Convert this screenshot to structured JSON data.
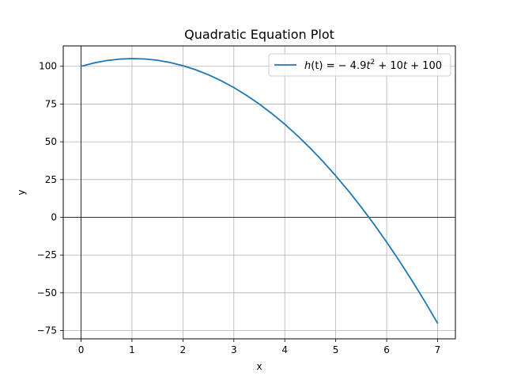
{
  "chart_data": {
    "type": "line",
    "title": "Quadratic Equation Plot",
    "xlabel": "x",
    "ylabel": "y",
    "xlim": [
      -0.35,
      7.35
    ],
    "ylim": [
      -80.5,
      113.5
    ],
    "xticks": [
      0,
      1,
      2,
      3,
      4,
      5,
      6,
      7
    ],
    "yticks": [
      -75,
      -50,
      -25,
      0,
      25,
      50,
      75,
      100
    ],
    "grid": true,
    "legend_position": "upper right",
    "reference_lines": [
      "x=0",
      "y=0"
    ],
    "series": [
      {
        "name": "h(t) = −4.9t² + 10t + 100",
        "color": "#1f77b4",
        "x": [
          0,
          0.25,
          0.5,
          0.75,
          1,
          1.25,
          1.5,
          1.75,
          2,
          2.25,
          2.5,
          2.75,
          3,
          3.25,
          3.5,
          3.75,
          4,
          4.25,
          4.5,
          4.75,
          5,
          5.25,
          5.5,
          5.75,
          6,
          6.25,
          6.5,
          6.75,
          7
        ],
        "y": [
          100,
          102.19,
          103.78,
          104.74,
          105.1,
          104.84,
          103.98,
          102.49,
          100.4,
          97.69,
          94.38,
          90.44,
          85.9,
          80.74,
          74.98,
          68.59,
          61.6,
          53.99,
          45.78,
          36.94,
          27.5,
          17.44,
          6.78,
          -4.51,
          -16.4,
          -28.91,
          -42.03,
          -55.76,
          -70.1
        ]
      }
    ],
    "legend_label_parts": {
      "prefix_italic": "h",
      "prefix_rest": "(t) = − 4.9",
      "t1": "t",
      "exp": "2",
      "mid": " + 10",
      "t2": "t",
      "tail": " + 100"
    }
  }
}
